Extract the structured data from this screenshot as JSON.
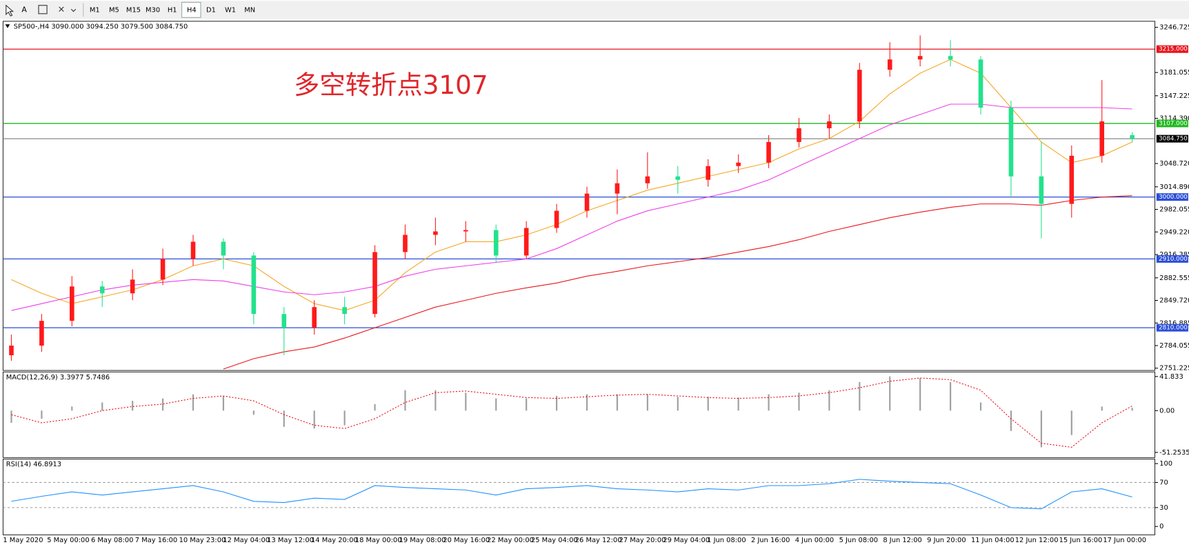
{
  "toolbar": {
    "font_button": "A",
    "timeframes": [
      "M1",
      "M5",
      "M15",
      "M30",
      "H1",
      "H4",
      "D1",
      "W1",
      "MN"
    ]
  },
  "chart_data": [
    {
      "type": "candlestick",
      "header": "SP500-,H4 3090.000 3094.250 3079.500 3084.750",
      "annotation": "多空转折点3107",
      "up_color": "#ff1a1a",
      "down_color": "#22e28c",
      "candles": [
        [
          2770,
          2800,
          2762,
          2784
        ],
        [
          2784,
          2830,
          2775,
          2820
        ],
        [
          2820,
          2885,
          2812,
          2870
        ],
        [
          2870,
          2878,
          2840,
          2860
        ],
        [
          2860,
          2895,
          2850,
          2880
        ],
        [
          2880,
          2925,
          2872,
          2910
        ],
        [
          2910,
          2945,
          2900,
          2935
        ],
        [
          2935,
          2940,
          2895,
          2915
        ],
        [
          2915,
          2920,
          2815,
          2830
        ],
        [
          2830,
          2840,
          2770,
          2810
        ],
        [
          2810,
          2850,
          2800,
          2840
        ],
        [
          2840,
          2855,
          2815,
          2830
        ],
        [
          2830,
          2930,
          2825,
          2920
        ],
        [
          2920,
          2960,
          2910,
          2945
        ],
        [
          2945,
          2970,
          2930,
          2950
        ],
        [
          2950,
          2965,
          2935,
          2952
        ],
        [
          2952,
          2960,
          2905,
          2915
        ],
        [
          2915,
          2965,
          2910,
          2955
        ],
        [
          2955,
          2990,
          2948,
          2980
        ],
        [
          2980,
          3015,
          2970,
          3005
        ],
        [
          3005,
          3040,
          2975,
          3020
        ],
        [
          3020,
          3065,
          3012,
          3030
        ],
        [
          3030,
          3045,
          3005,
          3025
        ],
        [
          3025,
          3055,
          3015,
          3045
        ],
        [
          3045,
          3062,
          3035,
          3050
        ],
        [
          3050,
          3090,
          3042,
          3080
        ],
        [
          3080,
          3115,
          3072,
          3100
        ],
        [
          3100,
          3120,
          3085,
          3110
        ],
        [
          3110,
          3195,
          3100,
          3185
        ],
        [
          3185,
          3225,
          3175,
          3200
        ],
        [
          3200,
          3235,
          3190,
          3205
        ],
        [
          3205,
          3228,
          3190,
          3200
        ],
        [
          3200,
          3205,
          3120,
          3130
        ],
        [
          3130,
          3140,
          3000,
          3030
        ],
        [
          3030,
          3080,
          2940,
          2990
        ],
        [
          2990,
          3075,
          2970,
          3060
        ],
        [
          3060,
          3170,
          3050,
          3110
        ],
        [
          3090,
          3094.25,
          3079.5,
          3084.75
        ]
      ],
      "series": [
        {
          "color": "#f5a623",
          "values": [
            2880,
            2860,
            2845,
            2855,
            2865,
            2880,
            2900,
            2910,
            2900,
            2870,
            2845,
            2835,
            2850,
            2890,
            2920,
            2935,
            2935,
            2945,
            2960,
            2980,
            2995,
            3010,
            3020,
            3030,
            3040,
            3050,
            3070,
            3085,
            3110,
            3150,
            3180,
            3200,
            3180,
            3130,
            3080,
            3050,
            3060,
            3080
          ]
        },
        {
          "color": "#ee3ee8",
          "values": [
            2835,
            2845,
            2855,
            2865,
            2872,
            2876,
            2880,
            2878,
            2870,
            2862,
            2858,
            2862,
            2870,
            2885,
            2895,
            2900,
            2905,
            2910,
            2925,
            2945,
            2965,
            2980,
            2990,
            3000,
            3010,
            3025,
            3045,
            3065,
            3085,
            3105,
            3120,
            3135,
            3135,
            3130,
            3130,
            3130,
            3130,
            3128
          ]
        },
        {
          "color": "#e8141b",
          "values": [
            null,
            null,
            null,
            null,
            null,
            null,
            null,
            2750,
            2765,
            2775,
            2782,
            2795,
            2810,
            2825,
            2840,
            2850,
            2860,
            2868,
            2875,
            2885,
            2892,
            2900,
            2906,
            2912,
            2920,
            2928,
            2938,
            2950,
            2960,
            2970,
            2978,
            2985,
            2990,
            2990,
            2988,
            2995,
            3000,
            3002
          ]
        }
      ],
      "levels": [
        {
          "value": 3215,
          "label": "3215.000",
          "color": "#e8141b"
        },
        {
          "value": 3107,
          "label": "3107.000",
          "color": "#1fb81f"
        },
        {
          "value": 3084.75,
          "label": "3084.750",
          "color": "#888888"
        },
        {
          "value": 3000,
          "label": "3000.000",
          "color": "#2a4ed8"
        },
        {
          "value": 2910,
          "label": "2910.000",
          "color": "#2a4ed8"
        },
        {
          "value": 2810,
          "label": "2810.000",
          "color": "#2a4ed8"
        }
      ],
      "ylim": [
        2747.9,
        3255.5
      ],
      "yticks": [
        3246.725,
        3181.055,
        3147.225,
        {
          "value": 3114.39,
          "label": "3114.390"
        },
        {
          "value": 3048.72,
          "label": "3048.720"
        },
        {
          "value": 3014.89,
          "label": "3014.890"
        },
        2982.055,
        {
          "value": 2949.22,
          "label": "2949.220"
        },
        2916.385,
        2882.555,
        {
          "value": 2849.72,
          "label": "2849.720"
        },
        2816.885,
        2784.055,
        2751.225
      ],
      "date_labels": [
        "1 May 2020",
        "5 May 00:00",
        "6 May 08:00",
        "7 May 16:00",
        "10 May 23:00",
        "12 May 04:00",
        "13 May 12:00",
        "14 May 20:00",
        "18 May 00:00",
        "19 May 08:00",
        "20 May 16:00",
        "22 May 00:00",
        "25 May 04:00",
        "26 May 12:00",
        "27 May 20:00",
        "29 May 04:00",
        "1 Jun 08:00",
        "2 Jun 16:00",
        "4 Jun 00:00",
        "5 Jun 08:00",
        "8 Jun 12:00",
        "9 Jun 20:00",
        "11 Jun 04:00",
        "12 Jun 12:00",
        "15 Jun 16:00",
        "17 Jun 00:00"
      ]
    },
    {
      "type": "macd",
      "title": "MACD(12,26,9) 3.3977 5.7486",
      "histogram": {
        "color": "#a0a0a0",
        "values": [
          -15,
          -10,
          5,
          10,
          12,
          15,
          20,
          18,
          -5,
          -20,
          -22,
          -18,
          8,
          25,
          25,
          22,
          15,
          15,
          18,
          20,
          20,
          20,
          17,
          17,
          16,
          20,
          22,
          25,
          35,
          42,
          40,
          35,
          10,
          -25,
          -45,
          -30,
          5,
          3.3977
        ]
      },
      "signal": {
        "color": "#e8141b",
        "values": [
          -5,
          -15,
          -10,
          0,
          5,
          8,
          15,
          18,
          12,
          -5,
          -18,
          -22,
          -10,
          10,
          22,
          24,
          20,
          16,
          15,
          17,
          19,
          20,
          18,
          16,
          15,
          16,
          18,
          22,
          28,
          36,
          40,
          38,
          25,
          -10,
          -40,
          -45,
          -15,
          5.7486
        ]
      },
      "ylim": [
        -57.6,
        47.4
      ],
      "yticks": [
        41.833,
        {
          "value": 0,
          "label": "0.00"
        },
        -51.2535
      ]
    },
    {
      "type": "rsi",
      "title": "RSI(14) 46.8913",
      "color": "#1e90ff",
      "values": [
        40,
        48,
        55,
        50,
        55,
        60,
        65,
        55,
        40,
        38,
        45,
        43,
        65,
        62,
        60,
        58,
        50,
        60,
        62,
        65,
        60,
        58,
        55,
        60,
        58,
        65,
        65,
        68,
        75,
        72,
        70,
        68,
        50,
        30,
        28,
        55,
        60,
        46.8913
      ],
      "ylim": [
        -13.3,
        107.2
      ],
      "yticks": [
        100,
        70,
        30,
        0
      ],
      "levels": [
        70,
        30
      ]
    }
  ]
}
